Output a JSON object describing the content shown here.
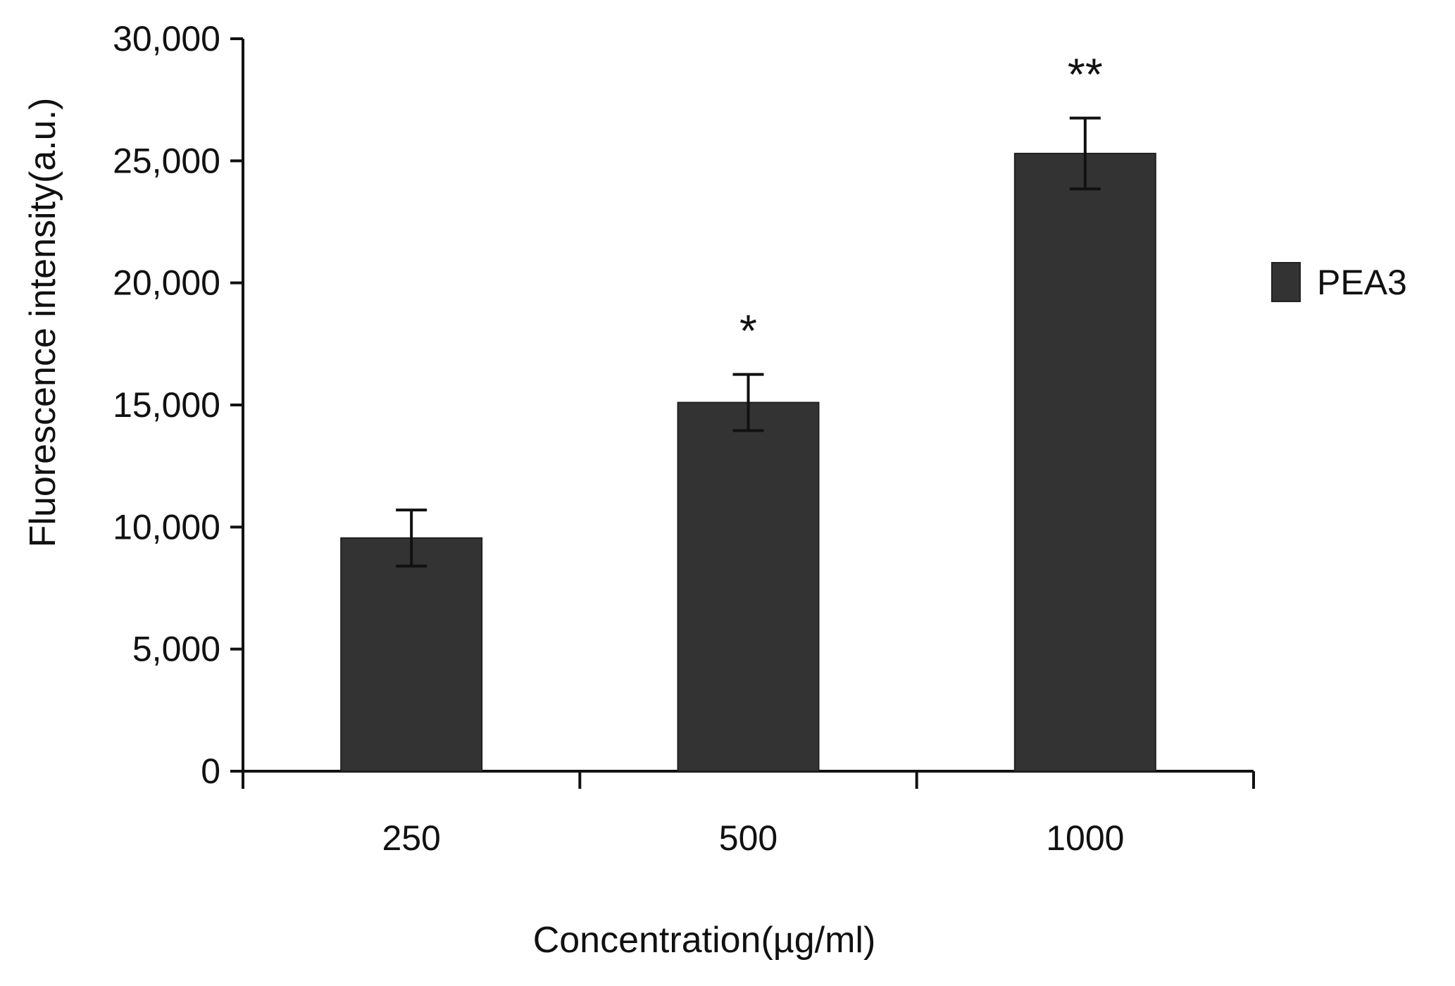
{
  "chart_data": {
    "type": "bar",
    "title": "",
    "xlabel": "Concentration(µg/ml)",
    "ylabel": "Fluorescence intensity(a.u.)",
    "categories": [
      "250",
      "500",
      "1000"
    ],
    "series": [
      {
        "name": "PEA3",
        "color": "#333333",
        "values": [
          9550,
          15100,
          25300
        ],
        "errors": [
          1150,
          1150,
          1450
        ],
        "significance": [
          "",
          "*",
          "**"
        ]
      }
    ],
    "ylim": [
      0,
      30000
    ],
    "yticks": [
      0,
      5000,
      10000,
      15000,
      20000,
      25000,
      30000
    ],
    "ytick_labels": [
      "0",
      "5,000",
      "10,000",
      "15,000",
      "20,000",
      "25,000",
      "30,000"
    ],
    "grid": false,
    "legend_position": "right"
  }
}
